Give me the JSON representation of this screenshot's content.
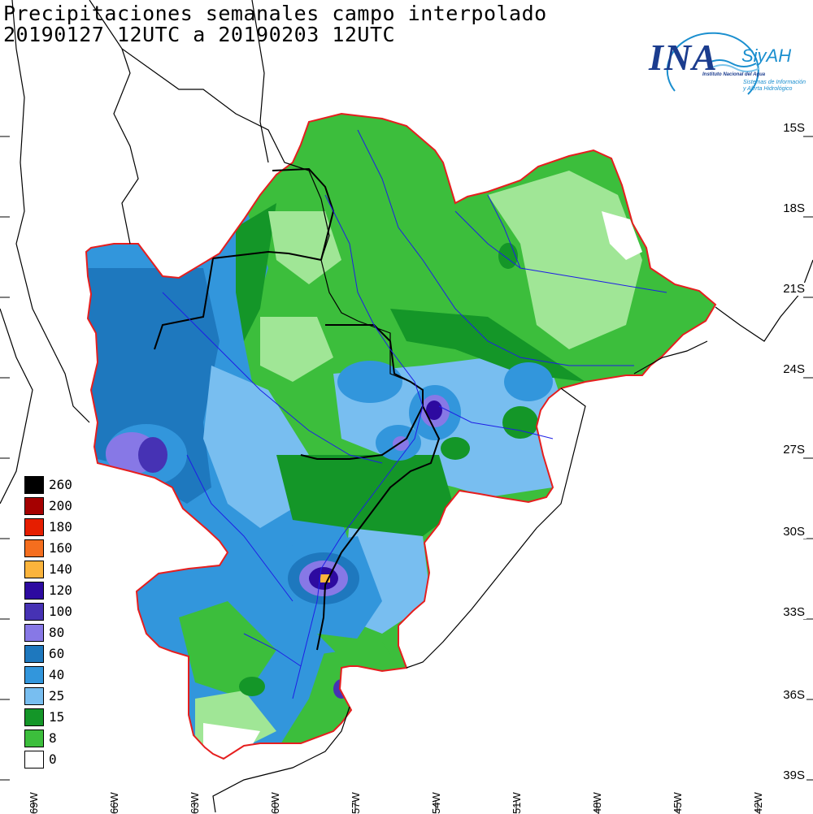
{
  "title": {
    "line1": "Precipitaciones semanales campo interpolado",
    "line2": "20190127 12UTC a 20190203 12UTC"
  },
  "logo": {
    "main": "INA",
    "sub1": "SiyAH",
    "sub2": "Instituto Nacional del Agua",
    "sub3": "Sistemas de Información",
    "sub4": "y Alerta Hidrológico"
  },
  "latitude_labels": [
    "15S",
    "18S",
    "21S",
    "24S",
    "27S",
    "30S",
    "33S",
    "36S",
    "39S"
  ],
  "longitude_labels": [
    "69W",
    "66W",
    "63W",
    "60W",
    "57W",
    "54W",
    "51W",
    "48W",
    "45W",
    "42W"
  ],
  "legend": [
    {
      "label": "260",
      "color": "#000000"
    },
    {
      "label": "200",
      "color": "#a50000"
    },
    {
      "label": "180",
      "color": "#e61e00"
    },
    {
      "label": "160",
      "color": "#f56e1e"
    },
    {
      "label": "140",
      "color": "#fbb43c"
    },
    {
      "label": "120",
      "color": "#2d0aa0"
    },
    {
      "label": "100",
      "color": "#4632b4"
    },
    {
      "label": "80",
      "color": "#8778e6"
    },
    {
      "label": "60",
      "color": "#1e78be"
    },
    {
      "label": "40",
      "color": "#3296dc"
    },
    {
      "label": "25",
      "color": "#78bef0"
    },
    {
      "label": "15",
      "color": "#149628"
    },
    {
      "label": "8",
      "color": "#3cbe3c"
    },
    {
      "label": "0",
      "color": "#ffffff"
    }
  ],
  "colors": {
    "light_green": "#a0e696",
    "domain_border": "#e61e1e",
    "rivers": "#1e1ee6",
    "coast": "#000000"
  }
}
